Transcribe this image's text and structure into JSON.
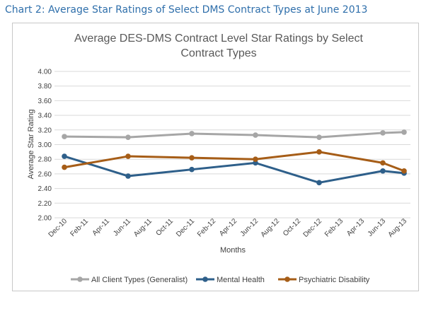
{
  "caption": "Chart 2: Average Star Ratings of Select DMS Contract Types at June 2013",
  "chart_data": {
    "type": "line",
    "title_lines": [
      "Average DES-DMS Contract Level Star Ratings by Select",
      "Contract Types"
    ],
    "xlabel": "Months",
    "ylabel": "Average Star Rating",
    "ylim": [
      2.0,
      4.0
    ],
    "y_ticks": [
      "4.00",
      "3.80",
      "3.60",
      "3.40",
      "3.20",
      "3.00",
      "2.80",
      "2.60",
      "2.40",
      "2.20",
      "2.00"
    ],
    "categories": [
      "Dec-10",
      "Feb-11",
      "Apr-11",
      "Jun-11",
      "Aug-11",
      "Oct-11",
      "Dec-11",
      "Feb-12",
      "Apr-12",
      "Jun-12",
      "Aug-12",
      "Oct-12",
      "Dec-12",
      "Feb-13",
      "Apr-13",
      "Jun-13",
      "Aug-13"
    ],
    "series": [
      {
        "name": "All Client Types (Generalist)",
        "color": "#a6a6a6",
        "points": [
          [
            "Dec-10",
            3.11
          ],
          [
            "Jun-11",
            3.1
          ],
          [
            "Dec-11",
            3.15
          ],
          [
            "Jun-12",
            3.13
          ],
          [
            "Dec-12",
            3.1
          ],
          [
            "Jun-13",
            3.16
          ],
          [
            "Aug-13",
            3.17
          ]
        ]
      },
      {
        "name": "Mental Health",
        "color": "#2e5f8a",
        "points": [
          [
            "Dec-10",
            2.84
          ],
          [
            "Jun-11",
            2.57
          ],
          [
            "Dec-11",
            2.66
          ],
          [
            "Jun-12",
            2.75
          ],
          [
            "Dec-12",
            2.48
          ],
          [
            "Jun-13",
            2.64
          ],
          [
            "Aug-13",
            2.61
          ]
        ]
      },
      {
        "name": "Psychiatric Disability",
        "color": "#a65d17",
        "points": [
          [
            "Dec-10",
            2.69
          ],
          [
            "Jun-11",
            2.84
          ],
          [
            "Dec-11",
            2.82
          ],
          [
            "Jun-12",
            2.8
          ],
          [
            "Dec-12",
            2.9
          ],
          [
            "Jun-13",
            2.75
          ],
          [
            "Aug-13",
            2.64
          ]
        ]
      }
    ],
    "grid": true,
    "legend": "bottom"
  }
}
